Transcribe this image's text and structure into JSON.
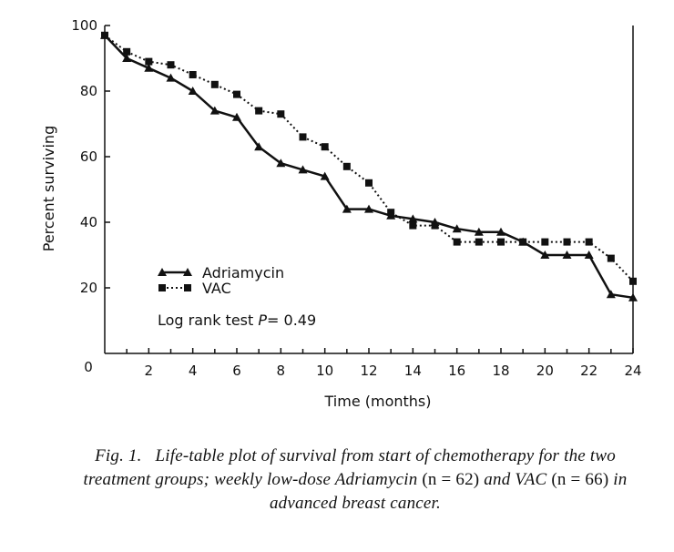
{
  "chart_data": {
    "type": "line",
    "xlabel": "Time (months)",
    "ylabel": "Percent surviving",
    "xlim": [
      0,
      24
    ],
    "ylim": [
      0,
      100
    ],
    "x_ticks": [
      "2",
      "4",
      "6",
      "8",
      "10",
      "12",
      "14",
      "16",
      "18",
      "20",
      "22",
      "24"
    ],
    "x_origin_label": "0",
    "y_ticks": [
      "100",
      "80",
      "60",
      "40",
      "20"
    ],
    "grid": false,
    "legend_position": "lower-left",
    "series": [
      {
        "name": "Adriamycin",
        "marker": "triangle",
        "style": "solid",
        "x": [
          0,
          1,
          2,
          3,
          4,
          5,
          6,
          7,
          8,
          9,
          10,
          11,
          12,
          13,
          14,
          15,
          16,
          17,
          18,
          19,
          20,
          21,
          22,
          23,
          24
        ],
        "y": [
          97,
          90,
          87,
          84,
          80,
          74,
          72,
          63,
          58,
          56,
          54,
          44,
          44,
          42,
          41,
          40,
          38,
          37,
          37,
          34,
          30,
          30,
          30,
          18,
          17
        ]
      },
      {
        "name": "VAC",
        "marker": "square",
        "style": "dotted",
        "x": [
          0,
          1,
          2,
          3,
          4,
          5,
          6,
          7,
          8,
          9,
          10,
          11,
          12,
          13,
          14,
          15,
          16,
          17,
          18,
          19,
          20,
          21,
          22,
          23,
          24
        ],
        "y": [
          97,
          92,
          89,
          88,
          85,
          82,
          79,
          74,
          73,
          66,
          63,
          57,
          52,
          43,
          39,
          39,
          34,
          34,
          34,
          34,
          34,
          34,
          34,
          29,
          22
        ]
      }
    ],
    "annotation": {
      "prefix": "Log rank test ",
      "p_symbol": "P",
      "value": "= 0.49"
    }
  },
  "caption": {
    "fig_label": "Fig. 1.",
    "part1": "Life-table plot of survival from start of chemotherapy for the two treatment groups; weekly low-dose Adriamycin ",
    "n1": "(n = 62)",
    "part2": " and VAC ",
    "n2": "(n = 66)",
    "part3": " in advanced breast cancer."
  }
}
